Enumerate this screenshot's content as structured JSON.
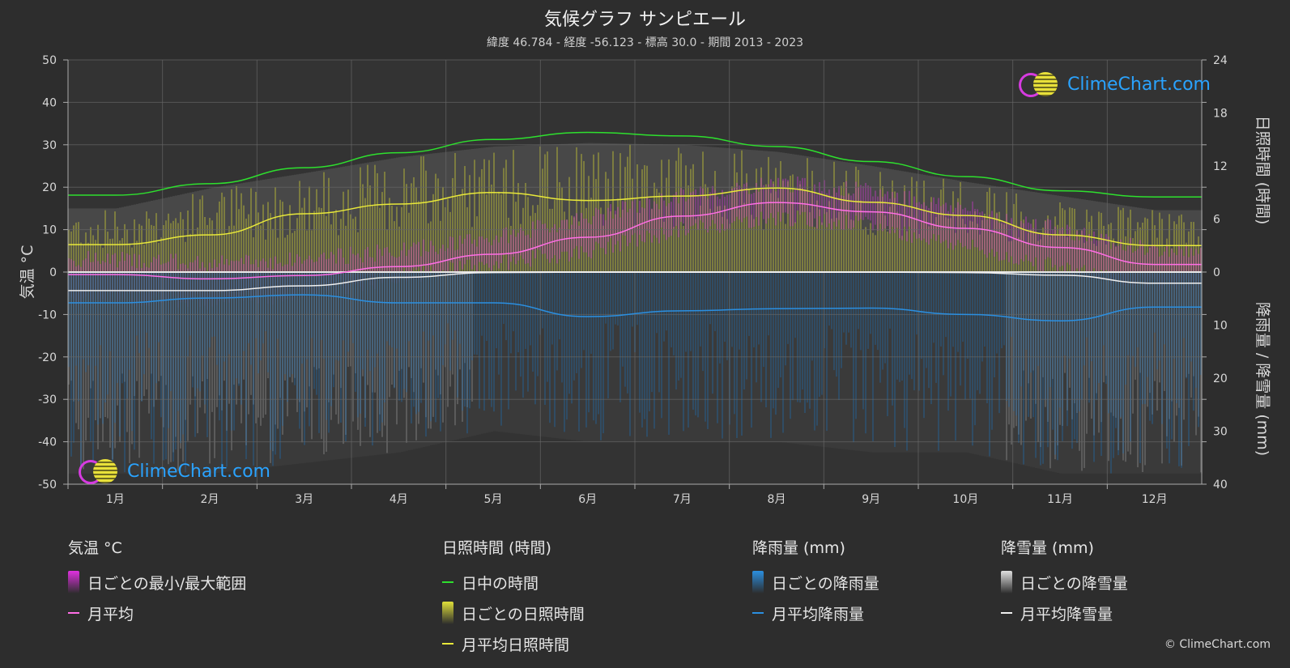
{
  "title": "気候グラフ サンピエール",
  "subtitle": "緯度 46.784 - 経度 -56.123 - 標高 30.0 - 期間 2013 - 2023",
  "left_axis_label": "気温 °C",
  "right_axis_top_label": "日照時間 (時間)",
  "right_axis_bottom_label": "降雨量 / 降雪量 (mm)",
  "logo_text": "ClimeChart.com",
  "copyright": "© ClimeChart.com",
  "colors": {
    "background": "#2d2d2d",
    "daylight": "#2ee02e",
    "sunshine_line": "#e8e83a",
    "temp_line": "#ff6ee6",
    "temp_range": "#d93ad9",
    "rain_line": "#2b8fe0",
    "rain_bar": "#1f6fb5",
    "snow_line": "#f0f0f0",
    "snow_bar": "#9a9a9a",
    "sunshine_bar": "#a8a83a"
  },
  "chart_data": {
    "type": "area",
    "categories": [
      "1月",
      "2月",
      "3月",
      "4月",
      "5月",
      "6月",
      "7月",
      "8月",
      "9月",
      "10月",
      "11月",
      "12月"
    ],
    "left_axis": {
      "ylim": [
        -50,
        50
      ],
      "ticks": [
        50,
        40,
        30,
        20,
        10,
        0,
        -10,
        -20,
        -30,
        -40,
        -50
      ]
    },
    "right_axis_sunshine": {
      "ylim": [
        0,
        24
      ],
      "ticks": [
        24,
        18,
        12,
        6,
        0
      ]
    },
    "right_axis_precip": {
      "ylim": [
        0,
        40
      ],
      "ticks": [
        10,
        20,
        30,
        40
      ]
    },
    "series": [
      {
        "name": "日中の時間",
        "unit": "hours",
        "values": [
          8.7,
          10.0,
          11.8,
          13.5,
          15.0,
          15.8,
          15.4,
          14.2,
          12.5,
          10.8,
          9.2,
          8.5
        ]
      },
      {
        "name": "月平均日照時間",
        "unit": "hours",
        "values": [
          3.1,
          4.2,
          6.6,
          7.7,
          9.0,
          8.1,
          8.6,
          9.5,
          7.9,
          6.4,
          4.2,
          3.0
        ]
      },
      {
        "name": "月平均",
        "unit": "°C",
        "values": [
          -0.6,
          -1.6,
          -0.8,
          1.3,
          4.2,
          8.2,
          13.2,
          16.4,
          14.2,
          10.3,
          5.8,
          1.8
        ]
      },
      {
        "name": "月平均降雨量",
        "unit": "mm",
        "values": [
          5.8,
          4.9,
          4.3,
          5.8,
          5.8,
          8.4,
          7.3,
          6.9,
          6.8,
          8.0,
          9.2,
          6.6
        ]
      },
      {
        "name": "月平均降雪量",
        "unit": "mm",
        "values": [
          3.5,
          3.5,
          2.6,
          1.0,
          0.1,
          0.0,
          0.0,
          0.0,
          0.0,
          0.1,
          0.6,
          2.1
        ]
      }
    ],
    "daily_temp_range": {
      "min": [
        -6,
        -7,
        -5,
        -1,
        2,
        5,
        10,
        13,
        11,
        6,
        1,
        -3
      ],
      "max": [
        3,
        2,
        3,
        5,
        8,
        13,
        18,
        21,
        19,
        15,
        10,
        5
      ]
    },
    "daily_sunshine_envelope": [
      7.2,
      9.5,
      11.2,
      13.0,
      14.2,
      14.6,
      14.4,
      13.6,
      12.0,
      10.2,
      8.6,
      7.0
    ],
    "daily_precip_envelope": [
      38,
      38,
      36,
      34,
      30,
      32,
      32,
      32,
      34,
      34,
      38,
      38
    ]
  },
  "legend": [
    {
      "heading": "気温 °C",
      "items": [
        {
          "label": "日ごとの最小/最大範囲",
          "kind": "box",
          "color": "#e030e0",
          "icon": "temp-range-swatch"
        },
        {
          "label": "月平均",
          "kind": "line",
          "color": "#ff6ee6",
          "icon": "temp-avg-swatch"
        }
      ]
    },
    {
      "heading": "日照時間 (時間)",
      "items": [
        {
          "label": "日中の時間",
          "kind": "line",
          "color": "#2ee02e",
          "icon": "daylight-swatch"
        },
        {
          "label": "日ごとの日照時間",
          "kind": "box",
          "color": "#e0e03a",
          "icon": "sunshine-bar-swatch"
        },
        {
          "label": "月平均日照時間",
          "kind": "line",
          "color": "#e8e83a",
          "icon": "sunshine-avg-swatch"
        }
      ]
    },
    {
      "heading": "降雨量 (mm)",
      "items": [
        {
          "label": "日ごとの降雨量",
          "kind": "box",
          "color": "#2b8fe0",
          "icon": "rain-bar-swatch"
        },
        {
          "label": "月平均降雨量",
          "kind": "line",
          "color": "#2b8fe0",
          "icon": "rain-avg-swatch"
        }
      ]
    },
    {
      "heading": "降雪量 (mm)",
      "items": [
        {
          "label": "日ごとの降雪量",
          "kind": "box",
          "color": "#e0e0e0",
          "icon": "snow-bar-swatch"
        },
        {
          "label": "月平均降雪量",
          "kind": "line",
          "color": "#f0f0f0",
          "icon": "snow-avg-swatch"
        }
      ]
    }
  ]
}
